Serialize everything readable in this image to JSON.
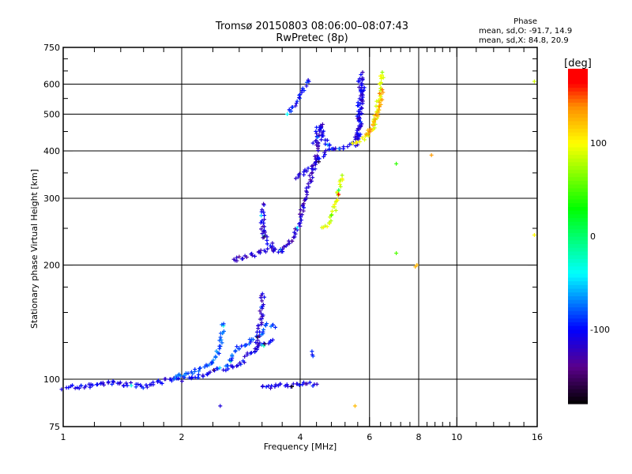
{
  "chart_data": {
    "type": "scatter",
    "title": "Tromsø 20150803 08:06:00–08:07:43",
    "subtitle": "RwPretec (8p)",
    "xlabel": "Frequency [MHz]",
    "ylabel": "Stationary phase Virtual Height [km]",
    "xscale": "log",
    "yscale": "log",
    "xlim": [
      1,
      16
    ],
    "ylim": [
      75,
      750
    ],
    "xticks": [
      1,
      2,
      4,
      6,
      8,
      10,
      16
    ],
    "xtick_labels": [
      "1",
      "2",
      "4",
      "6",
      "8",
      "10",
      "16"
    ],
    "yticks": [
      75,
      100,
      200,
      300,
      400,
      500,
      600,
      750
    ],
    "ytick_labels": [
      "75",
      "100",
      "200",
      "300",
      "400",
      "500",
      "600",
      "750"
    ],
    "grid_x": [
      2,
      4,
      6,
      8,
      10
    ],
    "grid_y": [
      100,
      200,
      300,
      400,
      500,
      600
    ],
    "stats": {
      "heading": "Phase",
      "o_line": "mean, sd,O: -91.7, 14.9",
      "x_line": "mean, sd,X:  84.8, 20.9"
    },
    "colorbar": {
      "label": "[deg]",
      "range": [
        -180,
        180
      ],
      "ticks": [
        100,
        0,
        -100
      ],
      "tick_labels": [
        "100",
        "0",
        "-100"
      ]
    },
    "traces": [
      {
        "phase": -105,
        "points": [
          [
            1.0,
            95
          ],
          [
            1.15,
            96
          ],
          [
            1.3,
            98
          ],
          [
            1.45,
            97
          ],
          [
            1.6,
            96
          ],
          [
            1.8,
            99
          ],
          [
            2.0,
            100
          ],
          [
            2.2,
            102
          ],
          [
            2.4,
            105
          ],
          [
            2.6,
            107
          ],
          [
            2.8,
            110
          ],
          [
            3.0,
            118
          ],
          [
            3.2,
            123
          ],
          [
            3.4,
            127
          ]
        ]
      },
      {
        "phase": -80,
        "points": [
          [
            1.9,
            101
          ],
          [
            2.1,
            104
          ],
          [
            2.3,
            108
          ],
          [
            2.45,
            115
          ],
          [
            2.5,
            125
          ],
          [
            2.55,
            140
          ]
        ]
      },
      {
        "phase": -85,
        "points": [
          [
            2.6,
            108
          ],
          [
            2.7,
            117
          ],
          [
            2.8,
            122
          ],
          [
            2.9,
            123
          ],
          [
            3.0,
            126
          ],
          [
            3.15,
            132
          ],
          [
            3.3,
            140
          ],
          [
            3.45,
            137
          ]
        ]
      },
      {
        "phase": -115,
        "points": [
          [
            3.1,
            120
          ],
          [
            3.15,
            140
          ],
          [
            3.2,
            155
          ],
          [
            3.2,
            168
          ]
        ]
      },
      {
        "phase": -120,
        "points": [
          [
            2.7,
            205
          ],
          [
            2.9,
            210
          ],
          [
            3.1,
            214
          ],
          [
            3.3,
            220
          ],
          [
            3.5,
            218
          ],
          [
            3.7,
            224
          ],
          [
            3.85,
            236
          ],
          [
            3.95,
            255
          ],
          [
            4.05,
            280
          ],
          [
            4.15,
            310
          ],
          [
            4.25,
            340
          ],
          [
            4.35,
            375
          ],
          [
            4.45,
            420
          ],
          [
            4.55,
            470
          ]
        ]
      },
      {
        "phase": -110,
        "points": [
          [
            3.2,
            245
          ],
          [
            3.3,
            232
          ],
          [
            3.45,
            222
          ],
          [
            3.6,
            217
          ]
        ]
      },
      {
        "phase": -115,
        "points": [
          [
            3.2,
            235
          ],
          [
            3.2,
            260
          ],
          [
            3.22,
            290
          ]
        ]
      },
      {
        "phase": -112,
        "points": [
          [
            3.9,
            340
          ],
          [
            4.1,
            350
          ],
          [
            4.3,
            362
          ],
          [
            4.5,
            385
          ],
          [
            4.7,
            400
          ],
          [
            5.0,
            405
          ],
          [
            5.3,
            412
          ],
          [
            5.5,
            425
          ],
          [
            5.65,
            470
          ],
          [
            5.7,
            540
          ],
          [
            5.75,
            600
          ],
          [
            5.75,
            645
          ]
        ]
      },
      {
        "phase": -105,
        "points": [
          [
            4.35,
            420
          ],
          [
            4.45,
            470
          ],
          [
            4.6,
            430
          ],
          [
            4.8,
            405
          ]
        ]
      },
      {
        "phase": -110,
        "points": [
          [
            5.5,
            410
          ],
          [
            5.6,
            430
          ],
          [
            5.65,
            460
          ],
          [
            5.6,
            500
          ],
          [
            5.7,
            560
          ],
          [
            5.65,
            620
          ]
        ]
      },
      {
        "phase": 90,
        "points": [
          [
            4.55,
            250
          ],
          [
            4.7,
            258
          ],
          [
            4.85,
            275
          ],
          [
            4.95,
            300
          ],
          [
            5.05,
            325
          ],
          [
            5.1,
            345
          ]
        ]
      },
      {
        "phase": 95,
        "points": [
          [
            5.4,
            420
          ],
          [
            5.8,
            430
          ],
          [
            6.0,
            445
          ],
          [
            6.15,
            470
          ],
          [
            6.25,
            510
          ],
          [
            6.35,
            560
          ],
          [
            6.4,
            610
          ],
          [
            6.45,
            645
          ]
        ]
      },
      {
        "phase": 130,
        "points": [
          [
            5.9,
            440
          ],
          [
            6.2,
            475
          ],
          [
            6.3,
            520
          ],
          [
            6.45,
            580
          ]
        ]
      },
      {
        "phase": -100,
        "points": [
          [
            4.2,
            615
          ],
          [
            3.8,
            520
          ],
          [
            3.7,
            500
          ],
          [
            4.25,
            118
          ],
          [
            4.3,
            115
          ]
        ]
      },
      {
        "phase": 40,
        "points": [
          [
            7.0,
            370
          ],
          [
            7.0,
            215
          ]
        ]
      },
      {
        "phase": 130,
        "points": [
          [
            7.8,
            200
          ],
          [
            7.9,
            200
          ],
          [
            8.6,
            390
          ],
          [
            5.5,
            85
          ]
        ]
      },
      {
        "phase": -110,
        "points": [
          [
            3.2,
            95
          ],
          [
            3.9,
            97
          ],
          [
            4.4,
            97
          ],
          [
            2.5,
            85
          ]
        ]
      },
      {
        "phase": 100,
        "points": [
          [
            15.7,
            610
          ],
          [
            15.7,
            240
          ]
        ]
      }
    ]
  }
}
